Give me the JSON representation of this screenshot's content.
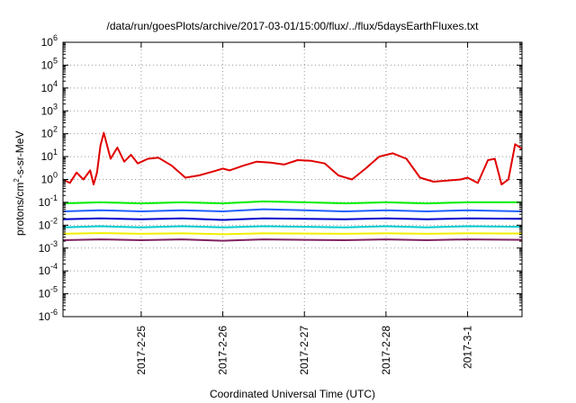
{
  "chart_data": {
    "type": "line",
    "title": "/data/run/goesPlots/archive/2017-03-01/15:00/flux/../flux/5daysEarthFluxes.txt",
    "xlabel": "Coordinated Universal Time (UTC)",
    "ylabel_parts": {
      "base": "protons/cm",
      "sup": "2",
      "rest": "-s-sr-MeV"
    },
    "yscale": "log",
    "ylim": [
      1e-06,
      1000000.0
    ],
    "y_ticks": [
      {
        "exp": "-6",
        "value": 1e-06
      },
      {
        "exp": "-5",
        "value": 1e-05
      },
      {
        "exp": "-4",
        "value": 0.0001
      },
      {
        "exp": "-3",
        "value": 0.001
      },
      {
        "exp": "-2",
        "value": 0.01
      },
      {
        "exp": "-1",
        "value": 0.1
      },
      {
        "exp": "0",
        "value": 1
      },
      {
        "exp": "1",
        "value": 10
      },
      {
        "exp": "2",
        "value": 100
      },
      {
        "exp": "3",
        "value": 1000.0
      },
      {
        "exp": "4",
        "value": 10000.0
      },
      {
        "exp": "5",
        "value": 100000.0
      },
      {
        "exp": "6",
        "value": 1000000.0
      }
    ],
    "y_tick_base": "10",
    "xlim": [
      "2017-02-24T01:00",
      "2017-03-01T16:00"
    ],
    "x_ticks": [
      {
        "label": "2017-2-25",
        "date": "2017-02-25T00:00"
      },
      {
        "label": "2017-2-26",
        "date": "2017-02-26T00:00"
      },
      {
        "label": "2017-2-27",
        "date": "2017-02-27T00:00"
      },
      {
        "label": "2017-2-28",
        "date": "2017-02-28T00:00"
      },
      {
        "label": "2017-3-1",
        "date": "2017-03-01T00:00"
      }
    ],
    "grid": true,
    "series": [
      {
        "color": "#e00000",
        "x": [
          "2017-02-24T01:00",
          "2017-02-24T03:00",
          "2017-02-24T05:00",
          "2017-02-24T07:00",
          "2017-02-24T09:00",
          "2017-02-24T10:00",
          "2017-02-24T11:00",
          "2017-02-24T12:00",
          "2017-02-24T13:00",
          "2017-02-24T15:00",
          "2017-02-24T17:00",
          "2017-02-24T19:00",
          "2017-02-24T21:00",
          "2017-02-24T23:00",
          "2017-02-25T02:00",
          "2017-02-25T05:00",
          "2017-02-25T09:00",
          "2017-02-25T13:00",
          "2017-02-25T17:00",
          "2017-02-25T21:00",
          "2017-02-26T00:00",
          "2017-02-26T02:00",
          "2017-02-26T06:00",
          "2017-02-26T10:00",
          "2017-02-26T14:00",
          "2017-02-26T18:00",
          "2017-02-26T22:00",
          "2017-02-27T02:00",
          "2017-02-27T06:00",
          "2017-02-27T10:00",
          "2017-02-27T14:00",
          "2017-02-27T18:00",
          "2017-02-27T22:00",
          "2017-02-28T02:00",
          "2017-02-28T06:00",
          "2017-02-28T10:00",
          "2017-02-28T14:00",
          "2017-02-28T18:00",
          "2017-02-28T22:00",
          "2017-03-01T00:00",
          "2017-03-01T03:00",
          "2017-03-01T06:00",
          "2017-03-01T08:00",
          "2017-03-01T10:00",
          "2017-03-01T12:00",
          "2017-03-01T14:00",
          "2017-03-01T16:00"
        ],
        "y": [
          1.0,
          0.7,
          2.0,
          1.0,
          2.5,
          0.6,
          2.0,
          30,
          110,
          8,
          25,
          6,
          12,
          5,
          8,
          9,
          4,
          1.2,
          1.5,
          2.2,
          3,
          2.5,
          4,
          6,
          5.5,
          4.5,
          7,
          6.5,
          5,
          1.5,
          1.0,
          3,
          10,
          14,
          8,
          1.2,
          0.8,
          0.9,
          1.0,
          1.2,
          0.7,
          7,
          8,
          0.6,
          1.0,
          35,
          22
        ]
      },
      {
        "color": "#00ee00",
        "x": [
          "2017-02-24T01:00",
          "2017-02-24T12:00",
          "2017-02-25T00:00",
          "2017-02-25T12:00",
          "2017-02-26T00:00",
          "2017-02-26T12:00",
          "2017-02-27T00:00",
          "2017-02-27T12:00",
          "2017-02-28T00:00",
          "2017-02-28T12:00",
          "2017-03-01T00:00",
          "2017-03-01T16:00"
        ],
        "y": [
          0.09,
          0.1,
          0.09,
          0.1,
          0.09,
          0.11,
          0.1,
          0.09,
          0.1,
          0.09,
          0.1,
          0.1
        ]
      },
      {
        "color": "#2060ff",
        "x": [
          "2017-02-24T01:00",
          "2017-02-24T12:00",
          "2017-02-25T00:00",
          "2017-02-25T12:00",
          "2017-02-26T00:00",
          "2017-02-26T12:00",
          "2017-02-27T00:00",
          "2017-02-27T12:00",
          "2017-02-28T00:00",
          "2017-02-28T12:00",
          "2017-03-01T00:00",
          "2017-03-01T16:00"
        ],
        "y": [
          0.04,
          0.045,
          0.04,
          0.045,
          0.04,
          0.05,
          0.045,
          0.04,
          0.045,
          0.04,
          0.045,
          0.04
        ]
      },
      {
        "color": "#0000cc",
        "x": [
          "2017-02-24T01:00",
          "2017-02-24T12:00",
          "2017-02-25T00:00",
          "2017-02-25T12:00",
          "2017-02-26T00:00",
          "2017-02-26T12:00",
          "2017-02-27T00:00",
          "2017-02-27T12:00",
          "2017-02-28T00:00",
          "2017-02-28T12:00",
          "2017-03-01T00:00",
          "2017-03-01T16:00"
        ],
        "y": [
          0.018,
          0.02,
          0.018,
          0.02,
          0.017,
          0.02,
          0.019,
          0.018,
          0.02,
          0.018,
          0.02,
          0.019
        ]
      },
      {
        "color": "#00cccc",
        "x": [
          "2017-02-24T01:00",
          "2017-02-24T12:00",
          "2017-02-25T00:00",
          "2017-02-25T12:00",
          "2017-02-26T00:00",
          "2017-02-26T12:00",
          "2017-02-27T00:00",
          "2017-02-27T12:00",
          "2017-02-28T00:00",
          "2017-02-28T12:00",
          "2017-03-01T00:00",
          "2017-03-01T16:00"
        ],
        "y": [
          0.008,
          0.009,
          0.008,
          0.009,
          0.008,
          0.009,
          0.0085,
          0.008,
          0.009,
          0.008,
          0.009,
          0.0085
        ]
      },
      {
        "color": "#f0f000",
        "x": [
          "2017-02-24T01:00",
          "2017-02-24T12:00",
          "2017-02-25T00:00",
          "2017-02-25T12:00",
          "2017-02-26T00:00",
          "2017-02-26T12:00",
          "2017-02-27T00:00",
          "2017-02-27T12:00",
          "2017-02-28T00:00",
          "2017-02-28T12:00",
          "2017-03-01T00:00",
          "2017-03-01T16:00"
        ],
        "y": [
          0.0042,
          0.0045,
          0.0042,
          0.0044,
          0.004,
          0.0044,
          0.0043,
          0.0042,
          0.0044,
          0.0042,
          0.0044,
          0.0043
        ]
      },
      {
        "color": "#802060",
        "x": [
          "2017-02-24T01:00",
          "2017-02-24T12:00",
          "2017-02-25T00:00",
          "2017-02-25T12:00",
          "2017-02-26T00:00",
          "2017-02-26T12:00",
          "2017-02-27T00:00",
          "2017-02-27T12:00",
          "2017-02-28T00:00",
          "2017-02-28T12:00",
          "2017-03-01T00:00",
          "2017-03-01T16:00"
        ],
        "y": [
          0.0022,
          0.0024,
          0.0022,
          0.0024,
          0.0021,
          0.0024,
          0.0023,
          0.0022,
          0.0024,
          0.0022,
          0.0024,
          0.0023
        ]
      }
    ]
  }
}
